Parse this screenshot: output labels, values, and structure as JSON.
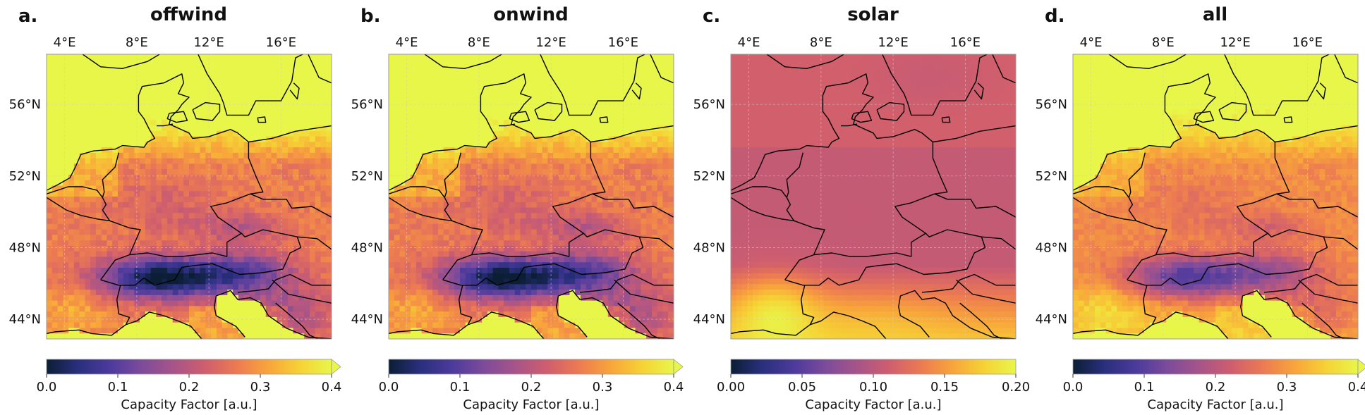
{
  "figure": {
    "xticks": [
      "4°E",
      "8°E",
      "12°E",
      "16°E"
    ],
    "xtick_values": [
      4,
      8,
      12,
      16
    ],
    "yticks": [
      "56°N",
      "52°N",
      "48°N",
      "44°N"
    ],
    "ytick_values": [
      56,
      52,
      48,
      44
    ],
    "lon_range": [
      3,
      18.8
    ],
    "lat_range": [
      42.9,
      58.8
    ],
    "cmap": [
      "#0b1e35",
      "#2a2f7e",
      "#4c3a9c",
      "#7d4b9b",
      "#a75489",
      "#cf5e6e",
      "#ec7a52",
      "#f8a53b",
      "#f6d235",
      "#e8f64a"
    ],
    "coastline_color": "#000000",
    "gridline_color": "#cccccc"
  },
  "chart_data": [
    {
      "type": "heatmap",
      "letter": "a.",
      "title": "offwind",
      "field": "wind",
      "colorbar": {
        "label": "Capacity Factor [a.u.]",
        "ticks": [
          "0.0",
          "0.1",
          "0.2",
          "0.3",
          "0.4"
        ],
        "vmin": 0.0,
        "vmax": 0.4,
        "extend": "max"
      }
    },
    {
      "type": "heatmap",
      "letter": "b.",
      "title": "onwind",
      "field": "wind",
      "colorbar": {
        "label": "Capacity Factor [a.u.]",
        "ticks": [
          "0.0",
          "0.1",
          "0.2",
          "0.3",
          "0.4"
        ],
        "vmin": 0.0,
        "vmax": 0.4,
        "extend": "max"
      }
    },
    {
      "type": "heatmap",
      "letter": "c.",
      "title": "solar",
      "field": "solar",
      "colorbar": {
        "label": "Capacity Factor [a.u.]",
        "ticks": [
          "0.00",
          "0.05",
          "0.10",
          "0.15",
          "0.20"
        ],
        "vmin": 0.0,
        "vmax": 0.2,
        "extend": "neither"
      }
    },
    {
      "type": "heatmap",
      "letter": "d.",
      "title": "all",
      "field": "all",
      "colorbar": {
        "label": "Capacity Factor [a.u.]",
        "ticks": [
          "0.0",
          "0.1",
          "0.2",
          "0.3",
          "0.4"
        ],
        "vmin": 0.0,
        "vmax": 0.4,
        "extend": "max"
      }
    }
  ]
}
